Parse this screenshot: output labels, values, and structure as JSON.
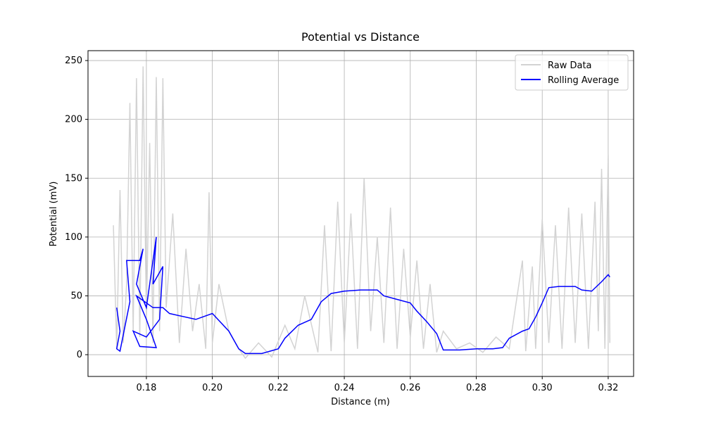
{
  "chart_data": {
    "type": "line",
    "title": "Potential vs Distance",
    "x_label": "Distance (m)",
    "y_label": "Potential (mV)",
    "xlim": [
      0.1623,
      0.3277
    ],
    "ylim": [
      -18.5,
      258.4
    ],
    "xticks": [
      0.18,
      {
        "value": 0.2,
        "label": "0.20"
      },
      0.22,
      0.24,
      0.26,
      0.28,
      {
        "value": 0.3,
        "label": "0.30"
      },
      0.32
    ],
    "yticks": [
      0,
      50,
      100,
      150,
      200,
      250
    ],
    "grid": true,
    "legend": "upper right",
    "series": [
      {
        "name": "Raw Data",
        "color": "#d3d3d3",
        "x": [
          0.17,
          0.171,
          0.172,
          0.173,
          0.174,
          0.175,
          0.176,
          0.177,
          0.178,
          0.179,
          0.18,
          0.181,
          0.182,
          0.183,
          0.184,
          0.185,
          0.186,
          0.188,
          0.19,
          0.192,
          0.194,
          0.196,
          0.198,
          0.199,
          0.2,
          0.202,
          0.205,
          0.208,
          0.21,
          0.214,
          0.218,
          0.222,
          0.225,
          0.228,
          0.232,
          0.234,
          0.236,
          0.238,
          0.24,
          0.242,
          0.244,
          0.246,
          0.248,
          0.25,
          0.252,
          0.254,
          0.256,
          0.258,
          0.26,
          0.262,
          0.264,
          0.266,
          0.268,
          0.27,
          0.274,
          0.278,
          0.282,
          0.286,
          0.29,
          0.294,
          0.295,
          0.297,
          0.298,
          0.3,
          0.302,
          0.304,
          0.306,
          0.308,
          0.31,
          0.312,
          0.314,
          0.316,
          0.317,
          0.318,
          0.319,
          0.32,
          0.3205
        ],
        "values": [
          110,
          5,
          140,
          10,
          60,
          214,
          20,
          235,
          15,
          245,
          30,
          180,
          10,
          236,
          20,
          235,
          40,
          120,
          10,
          90,
          20,
          60,
          5,
          138,
          10,
          60,
          20,
          5,
          -3,
          10,
          -2,
          25,
          5,
          50,
          2,
          110,
          3,
          130,
          10,
          120,
          5,
          150,
          20,
          100,
          10,
          125,
          5,
          90,
          15,
          80,
          5,
          60,
          2,
          20,
          5,
          10,
          2,
          15,
          5,
          80,
          3,
          75,
          5,
          115,
          10,
          110,
          5,
          125,
          10,
          120,
          5,
          130,
          20,
          158,
          5,
          170,
          10
        ]
      },
      {
        "name": "Rolling Average",
        "color": "#0000ff",
        "x": [
          0.171,
          0.172,
          0.171,
          0.172,
          0.175,
          0.174,
          0.178,
          0.179,
          0.177,
          0.18,
          0.183,
          0.182,
          0.185,
          0.184,
          0.18,
          0.176,
          0.178,
          0.183,
          0.18,
          0.177,
          0.182,
          0.185,
          0.187,
          0.195,
          0.2,
          0.205,
          0.208,
          0.21,
          0.215,
          0.22,
          0.222,
          0.226,
          0.23,
          0.233,
          0.236,
          0.24,
          0.245,
          0.25,
          0.252,
          0.256,
          0.26,
          0.262,
          0.265,
          0.268,
          0.27,
          0.275,
          0.28,
          0.285,
          0.288,
          0.29,
          0.294,
          0.296,
          0.298,
          0.3,
          0.302,
          0.305,
          0.31,
          0.312,
          0.315,
          0.318,
          0.32,
          0.3205
        ],
        "values": [
          40,
          20,
          5,
          3,
          45,
          80,
          80,
          90,
          60,
          40,
          100,
          60,
          75,
          30,
          15,
          20,
          7,
          6,
          30,
          50,
          40,
          40,
          35,
          30,
          35,
          20,
          5,
          1,
          1,
          5,
          14,
          25,
          30,
          45,
          52,
          54,
          55,
          55,
          50,
          47,
          44,
          37,
          28,
          18,
          4,
          4,
          5,
          5,
          6,
          14,
          20,
          22,
          32,
          44,
          57,
          58,
          58,
          55,
          54,
          62,
          68,
          66
        ]
      }
    ]
  }
}
